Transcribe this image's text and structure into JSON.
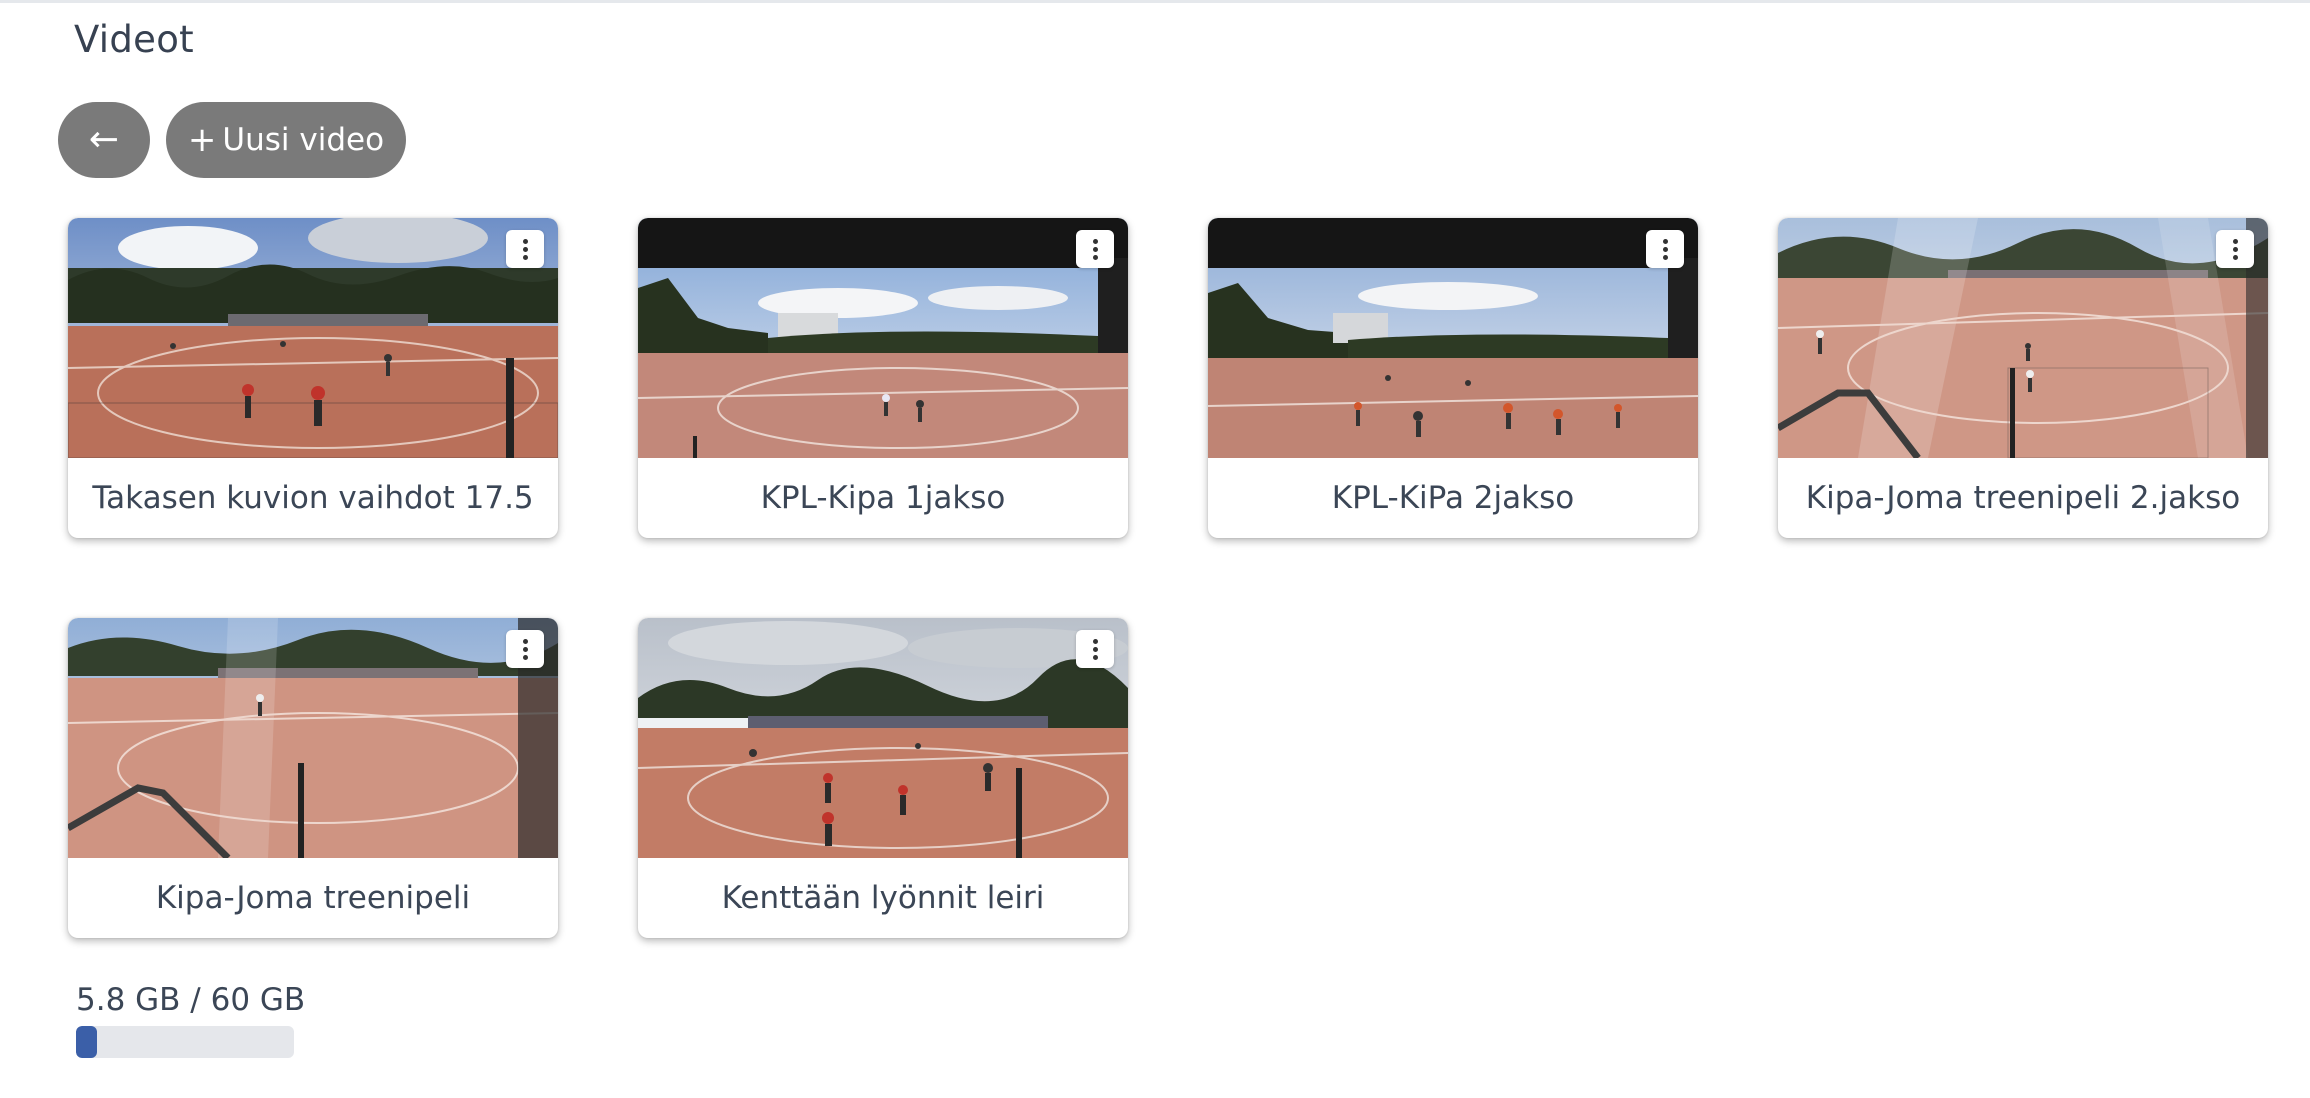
{
  "page": {
    "title": "Videot"
  },
  "toolbar": {
    "back_label": "←",
    "new_video_plus": "+",
    "new_video_label": "Uusi video"
  },
  "videos": [
    {
      "title": "Takasen kuvion vaihdot 17.5",
      "thumbnail_icon": "field-scene-icon",
      "menu_icon": "more-vertical-icon"
    },
    {
      "title": "KPL-Kipa 1jakso",
      "thumbnail_icon": "field-scene-icon",
      "menu_icon": "more-vertical-icon"
    },
    {
      "title": "KPL-KiPa 2jakso",
      "thumbnail_icon": "field-scene-icon",
      "menu_icon": "more-vertical-icon"
    },
    {
      "title": "Kipa-Joma treenipeli 2.jakso",
      "thumbnail_icon": "field-scene-icon",
      "menu_icon": "more-vertical-icon"
    },
    {
      "title": "Kipa-Joma treenipeli",
      "thumbnail_icon": "field-scene-icon",
      "menu_icon": "more-vertical-icon"
    },
    {
      "title": "Kenttään lyönnit leiri",
      "thumbnail_icon": "field-scene-icon",
      "menu_icon": "more-vertical-icon"
    }
  ],
  "storage": {
    "label": "5.8 GB / 60 GB",
    "used_gb": 5.8,
    "total_gb": 60,
    "fill_fraction": 0.097
  },
  "colors": {
    "button_bg": "#7a7a7a",
    "storage_fill": "#3b5fa8",
    "storage_track": "#e5e7eb",
    "text": "#3b4656"
  }
}
